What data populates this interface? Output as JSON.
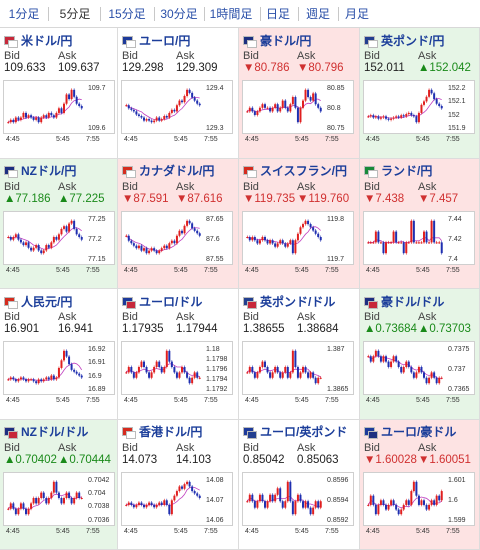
{
  "tabs": [
    {
      "label": "1分足",
      "active": false
    },
    {
      "label": "5分足",
      "active": true
    },
    {
      "label": "15分足",
      "active": false
    },
    {
      "label": "30分足",
      "active": false
    },
    {
      "label": "1時間足",
      "active": false
    },
    {
      "label": "日足",
      "active": false
    },
    {
      "label": "週足",
      "active": false
    },
    {
      "label": "月足",
      "active": false
    }
  ],
  "labels": {
    "bid": "Bid",
    "ask": "Ask"
  },
  "colors": {
    "up_bg": "#e6f5e6",
    "down_bg": "#fde3e3",
    "up_text": "#1a8a1a",
    "down_text": "#d03030",
    "candle_up": "#e01f1f",
    "candle_down": "#1f2fb0",
    "ma": "#c040c0"
  },
  "tiles": [
    {
      "name": "米ドル/円",
      "flags": [
        "us",
        "jp"
      ],
      "trend": "flat",
      "bid": "109.633",
      "ask": "109.637",
      "yticks": [
        "109.7",
        "109.6"
      ],
      "xticks": [
        "4:45",
        "5:45",
        "7:55"
      ],
      "series": [
        109.58,
        109.59,
        109.58,
        109.6,
        109.59,
        109.6,
        109.62,
        109.6,
        109.61,
        109.6,
        109.59,
        109.6,
        109.58,
        109.6,
        109.61,
        109.6,
        109.62,
        109.61,
        109.6,
        109.62,
        109.64,
        109.62,
        109.66,
        109.7,
        109.68,
        109.72,
        109.69,
        109.66,
        109.65,
        109.64
      ]
    },
    {
      "name": "ユーロ/円",
      "flags": [
        "eu",
        "jp"
      ],
      "trend": "flat",
      "bid": "129.298",
      "ask": "129.309",
      "yticks": [
        "129.4",
        "129.3"
      ],
      "xticks": [
        "4:45",
        "5:45",
        "7:55"
      ],
      "series": [
        129.3,
        129.28,
        129.27,
        129.26,
        129.24,
        129.23,
        129.22,
        129.2,
        129.21,
        129.2,
        129.19,
        129.2,
        129.22,
        129.2,
        129.21,
        129.23,
        129.22,
        129.25,
        129.27,
        129.26,
        129.3,
        129.33,
        129.32,
        129.36,
        129.4,
        129.38,
        129.35,
        129.33,
        129.31,
        129.3
      ]
    },
    {
      "name": "豪ドル/円",
      "flags": [
        "au",
        "jp"
      ],
      "trend": "down",
      "bid": "▼80.786",
      "ask": "▼80.796",
      "yticks": [
        "80.85",
        "80.8",
        "80.75"
      ],
      "xticks": [
        "4:45",
        "5:45",
        "7:55"
      ],
      "series": [
        80.79,
        80.8,
        80.79,
        80.78,
        80.79,
        80.8,
        80.81,
        80.8,
        80.8,
        80.79,
        80.8,
        80.81,
        80.79,
        80.8,
        80.82,
        80.8,
        80.79,
        80.81,
        80.83,
        80.8,
        80.76,
        80.8,
        80.82,
        80.85,
        80.83,
        80.82,
        80.84,
        80.81,
        80.8,
        80.79
      ]
    },
    {
      "name": "英ポンド/円",
      "flags": [
        "gb",
        "jp"
      ],
      "trend": "up",
      "bid": "152.011",
      "ask": "▲152.042",
      "yticks": [
        "152.2",
        "152.1",
        "152",
        "151.9"
      ],
      "xticks": [
        "4:45",
        "5:45",
        "7:55"
      ],
      "series": [
        151.95,
        151.96,
        151.94,
        151.95,
        151.93,
        151.94,
        151.95,
        151.93,
        151.92,
        151.93,
        151.94,
        151.95,
        151.94,
        151.96,
        151.95,
        151.97,
        151.98,
        151.96,
        151.95,
        151.9,
        151.98,
        152.05,
        152.08,
        152.12,
        152.18,
        152.15,
        152.1,
        152.06,
        152.04,
        152.02
      ]
    },
    {
      "name": "NZドル/円",
      "flags": [
        "nz",
        "jp"
      ],
      "trend": "up",
      "bid": "▲77.186",
      "ask": "▲77.225",
      "yticks": [
        "77.25",
        "77.2",
        "77.15"
      ],
      "xticks": [
        "4:45",
        "5:45",
        "7:55"
      ],
      "series": [
        77.2,
        77.19,
        77.2,
        77.21,
        77.19,
        77.18,
        77.17,
        77.18,
        77.16,
        77.15,
        77.16,
        77.17,
        77.15,
        77.14,
        77.15,
        77.17,
        77.16,
        77.18,
        77.2,
        77.19,
        77.21,
        77.23,
        77.24,
        77.22,
        77.25,
        77.26,
        77.23,
        77.21,
        77.2,
        77.19
      ]
    },
    {
      "name": "カナダドル/円",
      "flags": [
        "ca",
        "jp"
      ],
      "trend": "down",
      "bid": "▼87.591",
      "ask": "▼87.616",
      "yticks": [
        "87.65",
        "87.6",
        "87.55"
      ],
      "xticks": [
        "4:45",
        "5:45",
        "7:55"
      ],
      "series": [
        87.6,
        87.58,
        87.57,
        87.56,
        87.55,
        87.56,
        87.54,
        87.55,
        87.53,
        87.54,
        87.55,
        87.54,
        87.53,
        87.54,
        87.55,
        87.56,
        87.55,
        87.57,
        87.58,
        87.57,
        87.6,
        87.62,
        87.61,
        87.64,
        87.66,
        87.65,
        87.63,
        87.62,
        87.61,
        87.6
      ]
    },
    {
      "name": "スイスフラン/円",
      "flags": [
        "ch",
        "jp"
      ],
      "trend": "down",
      "bid": "▼119.735",
      "ask": "▼119.760",
      "yticks": [
        "119.8",
        "119.7"
      ],
      "xticks": [
        "4:45",
        "5:45",
        "7:55"
      ],
      "series": [
        119.75,
        119.74,
        119.75,
        119.74,
        119.73,
        119.74,
        119.75,
        119.74,
        119.73,
        119.74,
        119.73,
        119.72,
        119.73,
        119.74,
        119.73,
        119.72,
        119.73,
        119.74,
        119.7,
        119.74,
        119.76,
        119.78,
        119.79,
        119.8,
        119.79,
        119.78,
        119.77,
        119.76,
        119.75,
        119.74
      ]
    },
    {
      "name": "ランド/円",
      "flags": [
        "za",
        "jp"
      ],
      "trend": "down",
      "bid": "▼7.438",
      "ask": "▼7.457",
      "yticks": [
        "7.44",
        "7.42",
        "7.4"
      ],
      "xticks": [
        "4:45",
        "5:45",
        "7:55"
      ],
      "series": [
        7.44,
        7.44,
        7.44,
        7.441,
        7.44,
        7.44,
        7.439,
        7.44,
        7.44,
        7.44,
        7.441,
        7.44,
        7.44,
        7.44,
        7.439,
        7.44,
        7.44,
        7.442,
        7.44,
        7.44,
        7.44,
        7.44,
        7.441,
        7.44,
        7.44,
        7.442,
        7.44,
        7.44,
        7.44,
        7.439
      ]
    },
    {
      "name": "人民元/円",
      "flags": [
        "cn",
        "jp"
      ],
      "trend": "flat",
      "bid": "16.901",
      "ask": "16.941",
      "yticks": [
        "16.92",
        "16.91",
        "16.9",
        "16.89"
      ],
      "xticks": [
        "4:45",
        "5:45",
        "7:55"
      ],
      "series": [
        16.9,
        16.901,
        16.9,
        16.899,
        16.9,
        16.901,
        16.9,
        16.899,
        16.9,
        16.9,
        16.899,
        16.898,
        16.9,
        16.899,
        16.9,
        16.901,
        16.9,
        16.902,
        16.9,
        16.901,
        16.906,
        16.91,
        16.915,
        16.912,
        16.908,
        16.905,
        16.904,
        16.903,
        16.902,
        16.901
      ]
    },
    {
      "name": "ユーロ/ドル",
      "flags": [
        "eu",
        "us"
      ],
      "trend": "flat",
      "bid": "1.17935",
      "ask": "1.17944",
      "yticks": [
        "1.18",
        "1.1798",
        "1.1796",
        "1.1794",
        "1.1792"
      ],
      "xticks": [
        "4:45",
        "5:45",
        "7:55"
      ],
      "series": [
        1.1795,
        1.1796,
        1.1795,
        1.1794,
        1.1795,
        1.1796,
        1.1797,
        1.1796,
        1.1795,
        1.1794,
        1.1795,
        1.1796,
        1.1797,
        1.1796,
        1.1795,
        1.1796,
        1.1799,
        1.1797,
        1.1796,
        1.1795,
        1.1794,
        1.1795,
        1.1796,
        1.1795,
        1.1794,
        1.1793,
        1.1794,
        1.1795,
        1.1794,
        1.1794
      ]
    },
    {
      "name": "英ポンド/ドル",
      "flags": [
        "gb",
        "us"
      ],
      "trend": "flat",
      "bid": "1.38655",
      "ask": "1.38684",
      "yticks": [
        "1.387",
        "1.3865"
      ],
      "xticks": [
        "4:45",
        "5:45",
        "7:55"
      ],
      "series": [
        1.3867,
        1.3868,
        1.3867,
        1.3866,
        1.3867,
        1.3868,
        1.3869,
        1.3868,
        1.3867,
        1.3866,
        1.3867,
        1.3868,
        1.3867,
        1.3866,
        1.3867,
        1.3868,
        1.3866,
        1.3867,
        1.3871,
        1.3868,
        1.3866,
        1.3867,
        1.3868,
        1.3867,
        1.3866,
        1.3867,
        1.3866,
        1.3865,
        1.3866,
        1.3866
      ]
    },
    {
      "name": "豪ドル/ドル",
      "flags": [
        "au",
        "us"
      ],
      "trend": "up",
      "bid": "▲0.73684",
      "ask": "▲0.73703",
      "yticks": [
        "0.7375",
        "0.737",
        "0.7365"
      ],
      "xticks": [
        "4:45",
        "5:45",
        "7:55"
      ],
      "series": [
        0.7372,
        0.7371,
        0.7372,
        0.7373,
        0.7372,
        0.7371,
        0.7372,
        0.7371,
        0.737,
        0.7371,
        0.7372,
        0.7371,
        0.737,
        0.7369,
        0.737,
        0.7371,
        0.737,
        0.7369,
        0.7368,
        0.7369,
        0.737,
        0.7369,
        0.7368,
        0.7367,
        0.7368,
        0.7369,
        0.7368,
        0.7367,
        0.7368,
        0.7368
      ]
    },
    {
      "name": "NZドル/ドル",
      "flags": [
        "nz",
        "us"
      ],
      "trend": "up",
      "bid": "▲0.70402",
      "ask": "▲0.70444",
      "yticks": [
        "0.7042",
        "0.704",
        "0.7038",
        "0.7036"
      ],
      "xticks": [
        "4:45",
        "5:45",
        "7:55"
      ],
      "series": [
        0.7038,
        0.7039,
        0.7038,
        0.7037,
        0.7038,
        0.7039,
        0.7038,
        0.7037,
        0.7038,
        0.7039,
        0.704,
        0.7039,
        0.704,
        0.7041,
        0.704,
        0.7039,
        0.704,
        0.7041,
        0.7043,
        0.7041,
        0.704,
        0.7039,
        0.704,
        0.7041,
        0.704,
        0.7039,
        0.704,
        0.7041,
        0.704,
        0.704
      ]
    },
    {
      "name": "香港ドル/円",
      "flags": [
        "hk",
        "jp"
      ],
      "trend": "flat",
      "bid": "14.073",
      "ask": "14.103",
      "yticks": [
        "14.08",
        "14.07",
        "14.06"
      ],
      "xticks": [
        "4:45",
        "5:45",
        "7:55"
      ],
      "series": [
        14.07,
        14.071,
        14.07,
        14.069,
        14.07,
        14.071,
        14.07,
        14.069,
        14.07,
        14.071,
        14.07,
        14.069,
        14.07,
        14.071,
        14.07,
        14.072,
        14.07,
        14.066,
        14.072,
        14.074,
        14.076,
        14.078,
        14.077,
        14.079,
        14.08,
        14.078,
        14.076,
        14.075,
        14.074,
        14.073
      ]
    },
    {
      "name": "ユーロ/英ポンド",
      "flags": [
        "eu",
        "gb"
      ],
      "trend": "flat",
      "bid": "0.85042",
      "ask": "0.85063",
      "yticks": [
        "0.8596",
        "0.8594",
        "0.8592"
      ],
      "xticks": [
        "4:45",
        "5:45",
        "7:55"
      ],
      "series": [
        0.8594,
        0.8595,
        0.8594,
        0.8593,
        0.8594,
        0.8595,
        0.8594,
        0.8593,
        0.8594,
        0.8595,
        0.8594,
        0.8595,
        0.8596,
        0.8594,
        0.8593,
        0.8594,
        0.8597,
        0.8594,
        0.8592,
        0.8594,
        0.8595,
        0.8594,
        0.8593,
        0.8594,
        0.8593,
        0.8592,
        0.8593,
        0.8594,
        0.8593,
        0.8594
      ]
    },
    {
      "name": "ユーロ/豪ドル",
      "flags": [
        "eu",
        "au"
      ],
      "trend": "down",
      "bid": "▼1.60028",
      "ask": "▼1.60051",
      "yticks": [
        "1.601",
        "1.6",
        "1.599"
      ],
      "xticks": [
        "4:45",
        "5:45",
        "7:55"
      ],
      "series": [
        1.6,
        1.6002,
        1.6,
        1.5998,
        1.6,
        1.6001,
        1.6,
        1.5999,
        1.6,
        1.6001,
        1.6,
        1.5999,
        1.5998,
        1.5999,
        1.6,
        1.6001,
        1.6,
        1.6003,
        1.6005,
        1.6002,
        1.6,
        1.6001,
        1.6,
        1.5999,
        1.6,
        1.6001,
        1.6,
        1.6002,
        1.6001,
        1.6003
      ]
    }
  ]
}
